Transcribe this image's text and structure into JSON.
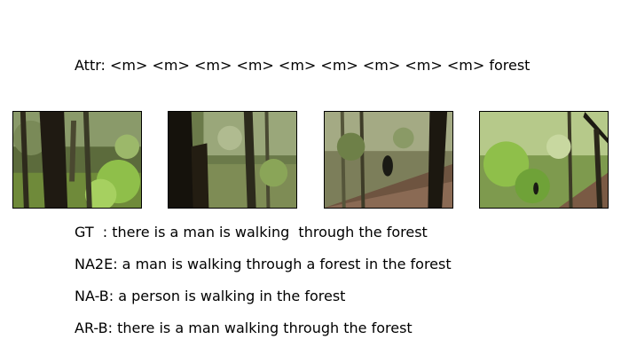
{
  "attr_line": "Attr: <m> <m> <m> <m> <m> <m> <m> <m> <m> forest",
  "frames": [
    {
      "icon": "forest-frame-1"
    },
    {
      "icon": "forest-frame-2"
    },
    {
      "icon": "forest-frame-3"
    },
    {
      "icon": "forest-frame-4"
    }
  ],
  "captions": [
    "GT  : there is a man is walking  through the forest",
    "NA2E: a man is walking through a forest in the forest",
    "NA-B: a person is walking in the forest",
    "AR-B: there is a man walking through the forest"
  ]
}
